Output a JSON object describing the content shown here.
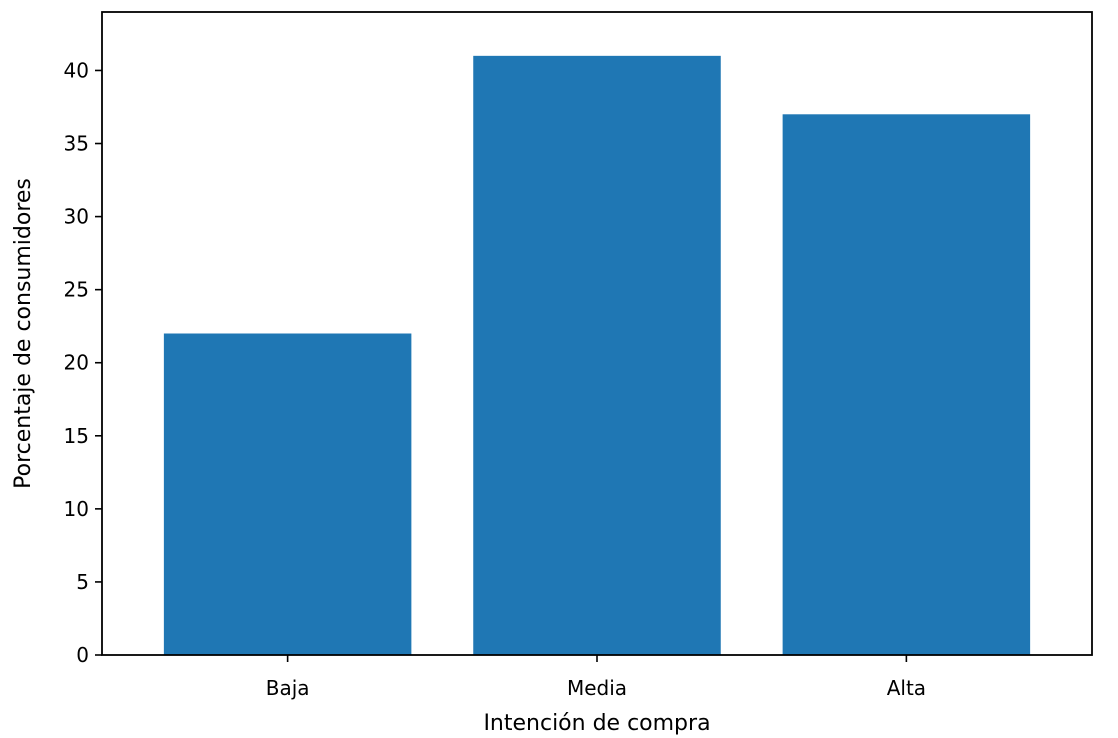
{
  "chart_data": {
    "type": "bar",
    "categories": [
      "Baja",
      "Media",
      "Alta"
    ],
    "values": [
      22,
      41,
      37
    ],
    "xlabel": "Intención de compra",
    "ylabel": "Porcentaje de consumidores",
    "ylim": [
      0,
      44
    ],
    "yticks": [
      0,
      5,
      10,
      15,
      20,
      25,
      30,
      35,
      40
    ],
    "grid": false,
    "legend": "none",
    "bar_color": "#1f77b4"
  }
}
